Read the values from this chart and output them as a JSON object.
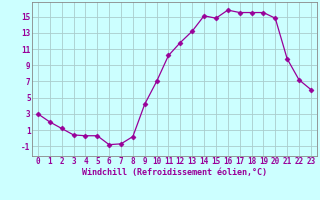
{
  "x": [
    0,
    1,
    2,
    3,
    4,
    5,
    6,
    7,
    8,
    9,
    10,
    11,
    12,
    13,
    14,
    15,
    16,
    17,
    18,
    19,
    20,
    21,
    22,
    23
  ],
  "y": [
    3.0,
    2.0,
    1.2,
    0.4,
    0.3,
    0.3,
    -0.8,
    -0.7,
    0.2,
    4.2,
    7.0,
    10.2,
    11.8,
    13.2,
    15.1,
    14.8,
    15.8,
    15.5,
    15.5,
    15.5,
    14.8,
    9.8,
    7.2,
    6.0
  ],
  "line_color": "#990099",
  "marker": "D",
  "marker_size": 2.5,
  "bg_color": "#ccffff",
  "grid_color": "#aacccc",
  "xlabel": "Windchill (Refroidissement éolien,°C)",
  "xlabel_color": "#990099",
  "xlabel_fontsize": 6,
  "tick_color": "#990099",
  "tick_fontsize": 5.5,
  "yticks": [
    -1,
    1,
    3,
    5,
    7,
    9,
    11,
    13,
    15
  ],
  "ylim": [
    -2.2,
    16.8
  ],
  "xlim": [
    -0.5,
    23.5
  ],
  "spine_color": "#888888"
}
